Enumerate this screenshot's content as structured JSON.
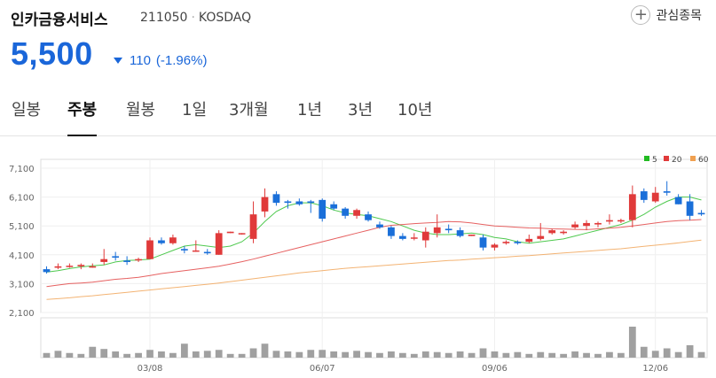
{
  "stock": {
    "name": "인카금융서비스",
    "code": "211050",
    "market": "KOSDAQ"
  },
  "favorite": {
    "label": "관심종목",
    "icon": "plus-circle-icon"
  },
  "quote": {
    "price": "5,500",
    "change": "110",
    "change_pct": "(-1.96%)",
    "direction_icon": "down-triangle-icon",
    "color": "#1a66d9"
  },
  "tabs": [
    {
      "label": "일봉",
      "active": false
    },
    {
      "label": "주봉",
      "active": true
    },
    {
      "label": "월봉",
      "active": false
    },
    {
      "label": "1일",
      "active": false
    },
    {
      "label": "3개월",
      "active": false
    },
    {
      "label": "1년",
      "active": false
    },
    {
      "label": "3년",
      "active": false
    },
    {
      "label": "10년",
      "active": false
    }
  ],
  "chart_data": {
    "type": "candlestick",
    "ylim": [
      2100,
      7100
    ],
    "y_ticks": [
      "7,100",
      "6,100",
      "5,100",
      "4,100",
      "3,100",
      "2,100"
    ],
    "x_ticks": [
      "03/08",
      "06/07",
      "09/06",
      "12/06"
    ],
    "legend": [
      {
        "name": "5",
        "color": "#22bb22"
      },
      {
        "name": "20",
        "color": "#e03a3a"
      },
      {
        "name": "60",
        "color": "#f0a050"
      }
    ],
    "up_color": "#e03a3a",
    "down_color": "#1a6fd9",
    "candles": [
      [
        3600,
        3700,
        3450,
        3500
      ],
      [
        3650,
        3800,
        3600,
        3700
      ],
      [
        3700,
        3800,
        3650,
        3720
      ],
      [
        3700,
        3800,
        3600,
        3750
      ],
      [
        3700,
        3800,
        3650,
        3700
      ],
      [
        3850,
        4300,
        3750,
        3950
      ],
      [
        4050,
        4200,
        3900,
        4000
      ],
      [
        3900,
        4050,
        3750,
        3850
      ],
      [
        3950,
        4000,
        3850,
        3950
      ],
      [
        3950,
        4700,
        3950,
        4600
      ],
      [
        4600,
        4700,
        4450,
        4500
      ],
      [
        4500,
        4800,
        4450,
        4700
      ],
      [
        4300,
        4400,
        4150,
        4250
      ],
      [
        4250,
        4600,
        4200,
        4250
      ],
      [
        4200,
        4300,
        4100,
        4150
      ],
      [
        4100,
        4950,
        4100,
        4850
      ],
      [
        4850,
        4900,
        4850,
        4900
      ],
      [
        4850,
        4850,
        4800,
        4850
      ],
      [
        4650,
        5950,
        4500,
        5500
      ],
      [
        5600,
        6400,
        5400,
        6100
      ],
      [
        6200,
        6300,
        5800,
        5900
      ],
      [
        5950,
        6000,
        5700,
        5900
      ],
      [
        5950,
        6050,
        5800,
        5850
      ],
      [
        5950,
        6000,
        5550,
        5900
      ],
      [
        6000,
        6050,
        5250,
        5350
      ],
      [
        5850,
        5950,
        5650,
        5700
      ],
      [
        5700,
        5750,
        5350,
        5450
      ],
      [
        5450,
        5700,
        5350,
        5650
      ],
      [
        5500,
        5600,
        5250,
        5300
      ],
      [
        5150,
        5250,
        5000,
        5050
      ],
      [
        5050,
        5100,
        4650,
        4750
      ],
      [
        4750,
        4850,
        4600,
        4650
      ],
      [
        4700,
        4850,
        4600,
        4700
      ],
      [
        4600,
        5050,
        4350,
        4900
      ],
      [
        4850,
        5500,
        4700,
        5050
      ],
      [
        5000,
        5150,
        4850,
        4950
      ],
      [
        4950,
        5050,
        4700,
        4750
      ],
      [
        4750,
        4800,
        4750,
        4800
      ],
      [
        4700,
        4800,
        4250,
        4350
      ],
      [
        4350,
        4500,
        4250,
        4450
      ],
      [
        4500,
        4600,
        4450,
        4550
      ],
      [
        4550,
        4600,
        4450,
        4500
      ],
      [
        4550,
        4800,
        4500,
        4650
      ],
      [
        4650,
        5200,
        4600,
        4750
      ],
      [
        4850,
        5000,
        4800,
        4950
      ],
      [
        4850,
        4950,
        4800,
        4900
      ],
      [
        5050,
        5250,
        5000,
        5150
      ],
      [
        5100,
        5300,
        4950,
        5200
      ],
      [
        5150,
        5250,
        5050,
        5200
      ],
      [
        5250,
        5500,
        5150,
        5300
      ],
      [
        5300,
        5350,
        5200,
        5300
      ],
      [
        5300,
        6500,
        5050,
        6200
      ],
      [
        6300,
        6400,
        5900,
        6000
      ],
      [
        5950,
        6450,
        5900,
        6250
      ],
      [
        6300,
        6650,
        6150,
        6250
      ],
      [
        6100,
        6200,
        5850,
        5850
      ],
      [
        5950,
        6200,
        5300,
        5450
      ],
      [
        5550,
        5650,
        5450,
        5500
      ]
    ],
    "volumes": [
      15,
      22,
      15,
      12,
      35,
      28,
      20,
      12,
      15,
      25,
      20,
      15,
      45,
      20,
      22,
      25,
      12,
      12,
      30,
      45,
      22,
      20,
      18,
      25,
      25,
      20,
      18,
      22,
      18,
      15,
      20,
      15,
      12,
      20,
      18,
      15,
      20,
      15,
      30,
      20,
      15,
      18,
      12,
      18,
      15,
      12,
      20,
      15,
      12,
      18,
      15,
      100,
      35,
      22,
      30,
      18,
      40,
      18
    ],
    "ma": {
      "5": [
        3500,
        3550,
        3620,
        3680,
        3720,
        3750,
        3850,
        3900,
        3920,
        3950,
        4100,
        4250,
        4400,
        4450,
        4400,
        4350,
        4400,
        4550,
        4850,
        5250,
        5600,
        5800,
        5900,
        5900,
        5800,
        5650,
        5550,
        5500,
        5450,
        5350,
        5250,
        5100,
        4950,
        4850,
        4800,
        4800,
        4820,
        4850,
        4800,
        4700,
        4650,
        4550,
        4500,
        4550,
        4600,
        4650,
        4750,
        4850,
        4950,
        5050,
        5150,
        5300,
        5500,
        5750,
        5950,
        6100,
        6100,
        6000
      ],
      "20": [
        3000,
        3050,
        3100,
        3120,
        3150,
        3200,
        3250,
        3280,
        3320,
        3380,
        3450,
        3500,
        3550,
        3600,
        3650,
        3700,
        3780,
        3860,
        3950,
        4050,
        4150,
        4250,
        4350,
        4450,
        4550,
        4650,
        4750,
        4850,
        4950,
        5050,
        5120,
        5150,
        5180,
        5200,
        5220,
        5250,
        5240,
        5200,
        5150,
        5100,
        5080,
        5050,
        5030,
        5020,
        5000,
        4990,
        4980,
        4970,
        5000,
        5020,
        5050,
        5100,
        5150,
        5200,
        5250,
        5280,
        5300,
        5320
      ],
      "60": [
        2550,
        2580,
        2610,
        2650,
        2680,
        2720,
        2760,
        2800,
        2840,
        2880,
        2920,
        2960,
        3000,
        3040,
        3080,
        3120,
        3170,
        3220,
        3270,
        3320,
        3370,
        3420,
        3470,
        3510,
        3550,
        3590,
        3630,
        3660,
        3690,
        3720,
        3750,
        3780,
        3810,
        3840,
        3870,
        3900,
        3920,
        3950,
        3970,
        4000,
        4020,
        4050,
        4070,
        4100,
        4130,
        4160,
        4190,
        4220,
        4250,
        4280,
        4310,
        4350,
        4390,
        4430,
        4470,
        4510,
        4560,
        4610
      ]
    }
  }
}
